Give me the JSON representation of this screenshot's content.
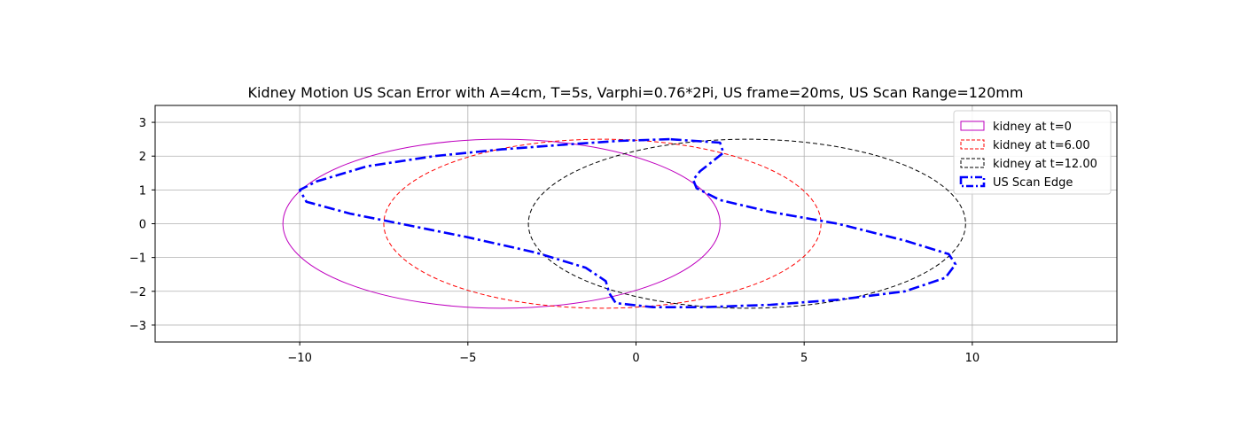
{
  "chart_data": {
    "type": "line",
    "title": "Kidney Motion US Scan Error with A=4cm, T=5s, Varphi=0.76*2Pi, US frame=20ms, US Scan Range=120mm",
    "xlabel": "",
    "ylabel": "",
    "xlim": [
      -14.3,
      14.3
    ],
    "ylim": [
      -3.5,
      3.5
    ],
    "xticks": [
      -10,
      -5,
      0,
      5,
      10
    ],
    "yticks": [
      -3,
      -2,
      -1,
      0,
      1,
      2,
      3
    ],
    "xtick_labels": [
      "−10",
      "−5",
      "0",
      "5",
      "10"
    ],
    "ytick_labels": [
      "−3",
      "−2",
      "−1",
      "0",
      "1",
      "2",
      "3"
    ],
    "grid": true,
    "legend_position": "top-right",
    "series": [
      {
        "name": "kidney at t=0",
        "shape": "ellipse",
        "center": [
          -4.0,
          0
        ],
        "semi_axes": [
          6.5,
          2.5
        ],
        "color": "#bf00bf",
        "style": "solid"
      },
      {
        "name": "kidney at t=6.00",
        "shape": "ellipse",
        "center": [
          -1.0,
          0
        ],
        "semi_axes": [
          6.5,
          2.5
        ],
        "color": "#ff0000",
        "style": "dashed"
      },
      {
        "name": "kidney at t=12.00",
        "shape": "ellipse",
        "center": [
          3.3,
          0
        ],
        "semi_axes": [
          6.5,
          2.5
        ],
        "color": "#000000",
        "style": "dashed"
      },
      {
        "name": "US Scan Edge",
        "shape": "polyline",
        "color": "#0000ff",
        "style": "dashdot",
        "x": [
          1.0,
          -0.5,
          -2.0,
          -4.0,
          -6.0,
          -8.0,
          -9.5,
          -10.0,
          -9.8,
          -8.5,
          -7.0,
          -5.0,
          -3.0,
          -1.5,
          -0.9,
          -0.8,
          -0.6,
          0.5,
          2.0,
          4.0,
          6.0,
          8.0,
          9.2,
          9.5,
          9.3,
          8.0,
          6.0,
          4.0,
          2.5,
          1.8,
          1.7,
          1.9,
          2.6,
          2.5,
          1.0
        ],
        "y": [
          2.5,
          2.45,
          2.35,
          2.2,
          2.0,
          1.7,
          1.25,
          1.0,
          0.65,
          0.3,
          0.0,
          -0.4,
          -0.85,
          -1.3,
          -1.7,
          -2.05,
          -2.35,
          -2.47,
          -2.47,
          -2.4,
          -2.25,
          -2.0,
          -1.6,
          -1.2,
          -0.9,
          -0.5,
          0.0,
          0.35,
          0.7,
          1.05,
          1.3,
          1.55,
          2.1,
          2.4,
          2.5
        ]
      }
    ]
  }
}
